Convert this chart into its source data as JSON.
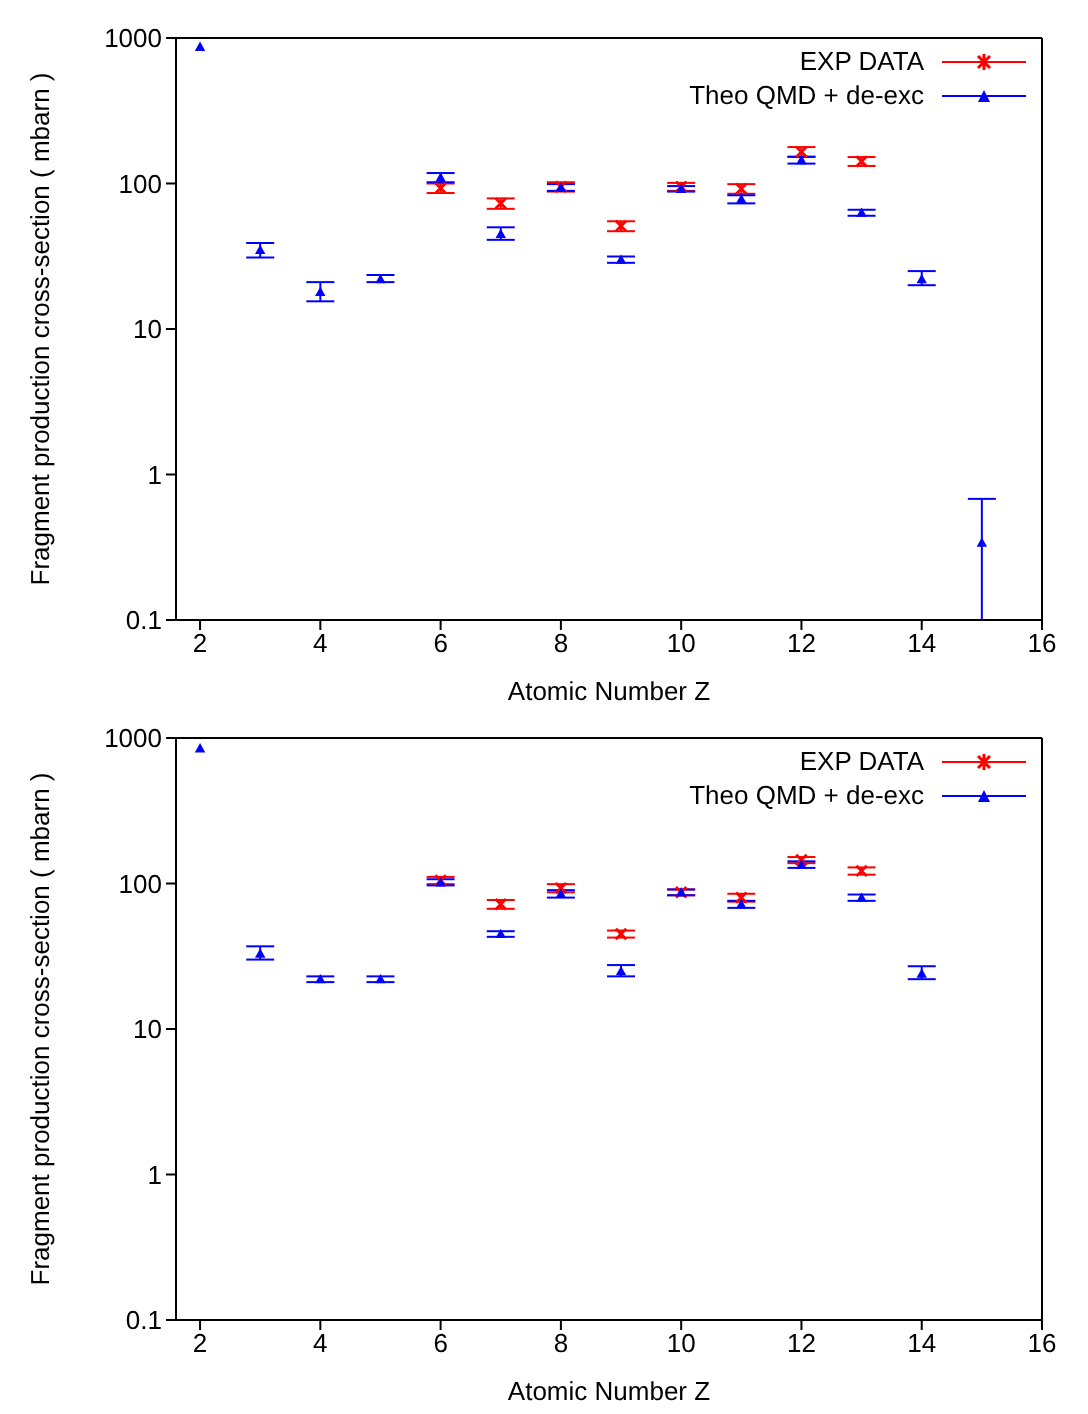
{
  "chart_data": [
    {
      "type": "scatter",
      "xlabel": "Atomic Number Z",
      "ylabel": "Fragment production cross-section   ( mbarn )",
      "log": "y",
      "xlim": [
        1.6,
        16
      ],
      "xticks": [
        2,
        4,
        6,
        8,
        10,
        12,
        14,
        16
      ],
      "ylim": [
        0.1,
        1000
      ],
      "yticks": [
        0.1,
        1,
        10,
        100,
        1000
      ],
      "grid": false,
      "legend": "top right",
      "series": [
        {
          "name": "EXP DATA",
          "color": "#ff0000",
          "marker": "cross",
          "x": [
            6,
            7,
            8,
            9,
            10,
            11,
            12,
            13
          ],
          "values": [
            93,
            73,
            95,
            51,
            95,
            92,
            165,
            142
          ],
          "errors": [
            [
              86,
              100
            ],
            [
              67,
              79
            ],
            [
              88,
              102
            ],
            [
              47,
              55
            ],
            [
              89,
              101
            ],
            [
              85,
              99
            ],
            [
              152,
              178
            ],
            [
              132,
              152
            ]
          ]
        },
        {
          "name": "Theo QMD + de-exc",
          "color": "#0000ff",
          "marker": "triangle",
          "x": [
            2,
            3,
            4,
            5,
            6,
            7,
            8,
            9,
            10,
            11,
            12,
            13,
            14,
            15
          ],
          "values": [
            870,
            35,
            18,
            22,
            110,
            45,
            94,
            30,
            92,
            78,
            145,
            63,
            22,
            0.34
          ],
          "errors": [
            null,
            [
              31,
              39
            ],
            [
              15.5,
              21
            ],
            [
              21,
              23.5
            ],
            [
              102,
              118
            ],
            [
              41,
              50
            ],
            [
              89,
              99
            ],
            [
              28.5,
              31.5
            ],
            [
              88,
              96
            ],
            [
              73,
              83
            ],
            [
              137,
              153
            ],
            [
              60,
              66
            ],
            [
              20,
              25
            ],
            [
              0.1,
              0.68
            ]
          ]
        }
      ]
    },
    {
      "type": "scatter",
      "xlabel": "Atomic Number Z",
      "ylabel": "Fragment production cross-section   ( mbarn )",
      "log": "y",
      "xlim": [
        1.6,
        16
      ],
      "xticks": [
        2,
        4,
        6,
        8,
        10,
        12,
        14,
        16
      ],
      "ylim": [
        0.1,
        1000
      ],
      "yticks": [
        0.1,
        1,
        10,
        100,
        1000
      ],
      "grid": false,
      "legend": "top right",
      "series": [
        {
          "name": "EXP DATA",
          "color": "#ff0000",
          "marker": "cross",
          "x": [
            6,
            7,
            8,
            9,
            10,
            11,
            12,
            13
          ],
          "values": [
            105,
            72,
            93,
            45,
            87,
            80,
            145,
            122
          ],
          "errors": [
            [
              99,
              111
            ],
            [
              67,
              77
            ],
            [
              87,
              99
            ],
            [
              42.5,
              47.5
            ],
            [
              83,
              91
            ],
            [
              75,
              85
            ],
            [
              138,
              152
            ],
            [
              115,
              129
            ]
          ]
        },
        {
          "name": "Theo QMD + de-exc",
          "color": "#0000ff",
          "marker": "triangle",
          "x": [
            2,
            3,
            4,
            5,
            6,
            7,
            8,
            9,
            10,
            11,
            12,
            13,
            14
          ],
          "values": [
            850,
            33,
            22,
            22,
            102,
            45,
            85,
            25,
            87,
            72,
            135,
            80,
            24
          ],
          "errors": [
            null,
            [
              30,
              37
            ],
            [
              21,
              23
            ],
            [
              21,
              23
            ],
            [
              97,
              107
            ],
            [
              43,
              47
            ],
            [
              80,
              90
            ],
            [
              23,
              27.5
            ],
            [
              83,
              91
            ],
            [
              68,
              76
            ],
            [
              128,
              142
            ],
            [
              76,
              84
            ],
            [
              22,
              27
            ]
          ]
        }
      ]
    }
  ]
}
